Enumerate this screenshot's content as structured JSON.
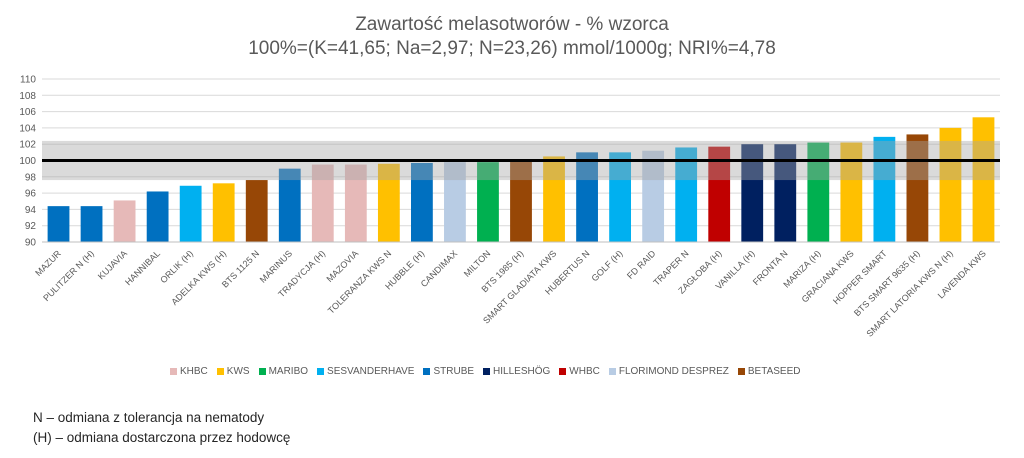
{
  "chart_data": {
    "type": "bar",
    "title": "Zawartość melasotworów - % wzorca",
    "subtitle": "100%=(K=41,65; Na=2,97; N=23,26) mmol/1000g; NRI%=4,78",
    "ylim": [
      90,
      110
    ],
    "yticks": [
      90,
      92,
      94,
      96,
      98,
      100,
      102,
      104,
      106,
      108,
      110
    ],
    "reference_line": 100,
    "band": [
      97.6,
      102.4
    ],
    "categories": [
      "MAZUR",
      "PULITZER N (H)",
      "KUJAVIA",
      "HANNIBAL",
      "ORLIK (H)",
      "ADELKA KWS (H)",
      "BTS 1125 N",
      "MARINUS",
      "TRADYCJA (H)",
      "MAZOVIA",
      "TOLERANZA KWS N",
      "HUBBLE (H)",
      "CANDIMAX",
      "MILTON",
      "BTS 1985 (H)",
      "SMART GLADIATA KWS",
      "HUBERTUS N",
      "GOLF (H)",
      "FD RAID",
      "TRAPER N",
      "ZAGŁOBA (H)",
      "VANILLA (H)",
      "FRONTA N",
      "MARIZA (H)",
      "GRACIANA KWS",
      "HOPPER SMART",
      "BTS SMART 9635 (H)",
      "SMART LATORIA KWS N (H)",
      "LAVENDA KWS"
    ],
    "values": [
      94.4,
      94.4,
      95.1,
      96.2,
      96.9,
      97.2,
      97.6,
      99.0,
      99.5,
      99.5,
      99.6,
      99.7,
      99.8,
      99.8,
      100.1,
      100.5,
      101.0,
      101.0,
      101.2,
      101.6,
      101.7,
      102.0,
      102.0,
      102.2,
      102.2,
      102.9,
      103.2,
      104.0,
      105.3
    ],
    "breeders": [
      "STRUBE",
      "STRUBE",
      "KHBC",
      "STRUBE",
      "SESVANDERHAVE",
      "KWS",
      "BETASEED",
      "STRUBE",
      "KHBC",
      "KHBC",
      "KWS",
      "STRUBE",
      "FLORIMOND DESPREZ",
      "MARIBO",
      "BETASEED",
      "KWS",
      "STRUBE",
      "SESVANDERHAVE",
      "FLORIMOND DESPREZ",
      "SESVANDERHAVE",
      "WHBC",
      "HILLESHÖG",
      "HILLESHÖG",
      "MARIBO",
      "KWS",
      "SESVANDERHAVE",
      "BETASEED",
      "KWS",
      "KWS"
    ],
    "legend": [
      {
        "name": "KHBC",
        "color": "#E6B9B8"
      },
      {
        "name": "KWS",
        "color": "#FFC000"
      },
      {
        "name": "MARIBO",
        "color": "#00B050"
      },
      {
        "name": "SESVANDERHAVE",
        "color": "#00B0F0"
      },
      {
        "name": "STRUBE",
        "color": "#0070C0"
      },
      {
        "name": "HILLESHÖG",
        "color": "#002060"
      },
      {
        "name": "WHBC",
        "color": "#C00000"
      },
      {
        "name": "FLORIMOND DESPREZ",
        "color": "#B8CCE4"
      },
      {
        "name": "BETASEED",
        "color": "#974706"
      }
    ]
  },
  "footnotes": [
    "N – odmiana z tolerancja na nematody",
    "(H) – odmiana dostarczona przez hodowcę"
  ]
}
